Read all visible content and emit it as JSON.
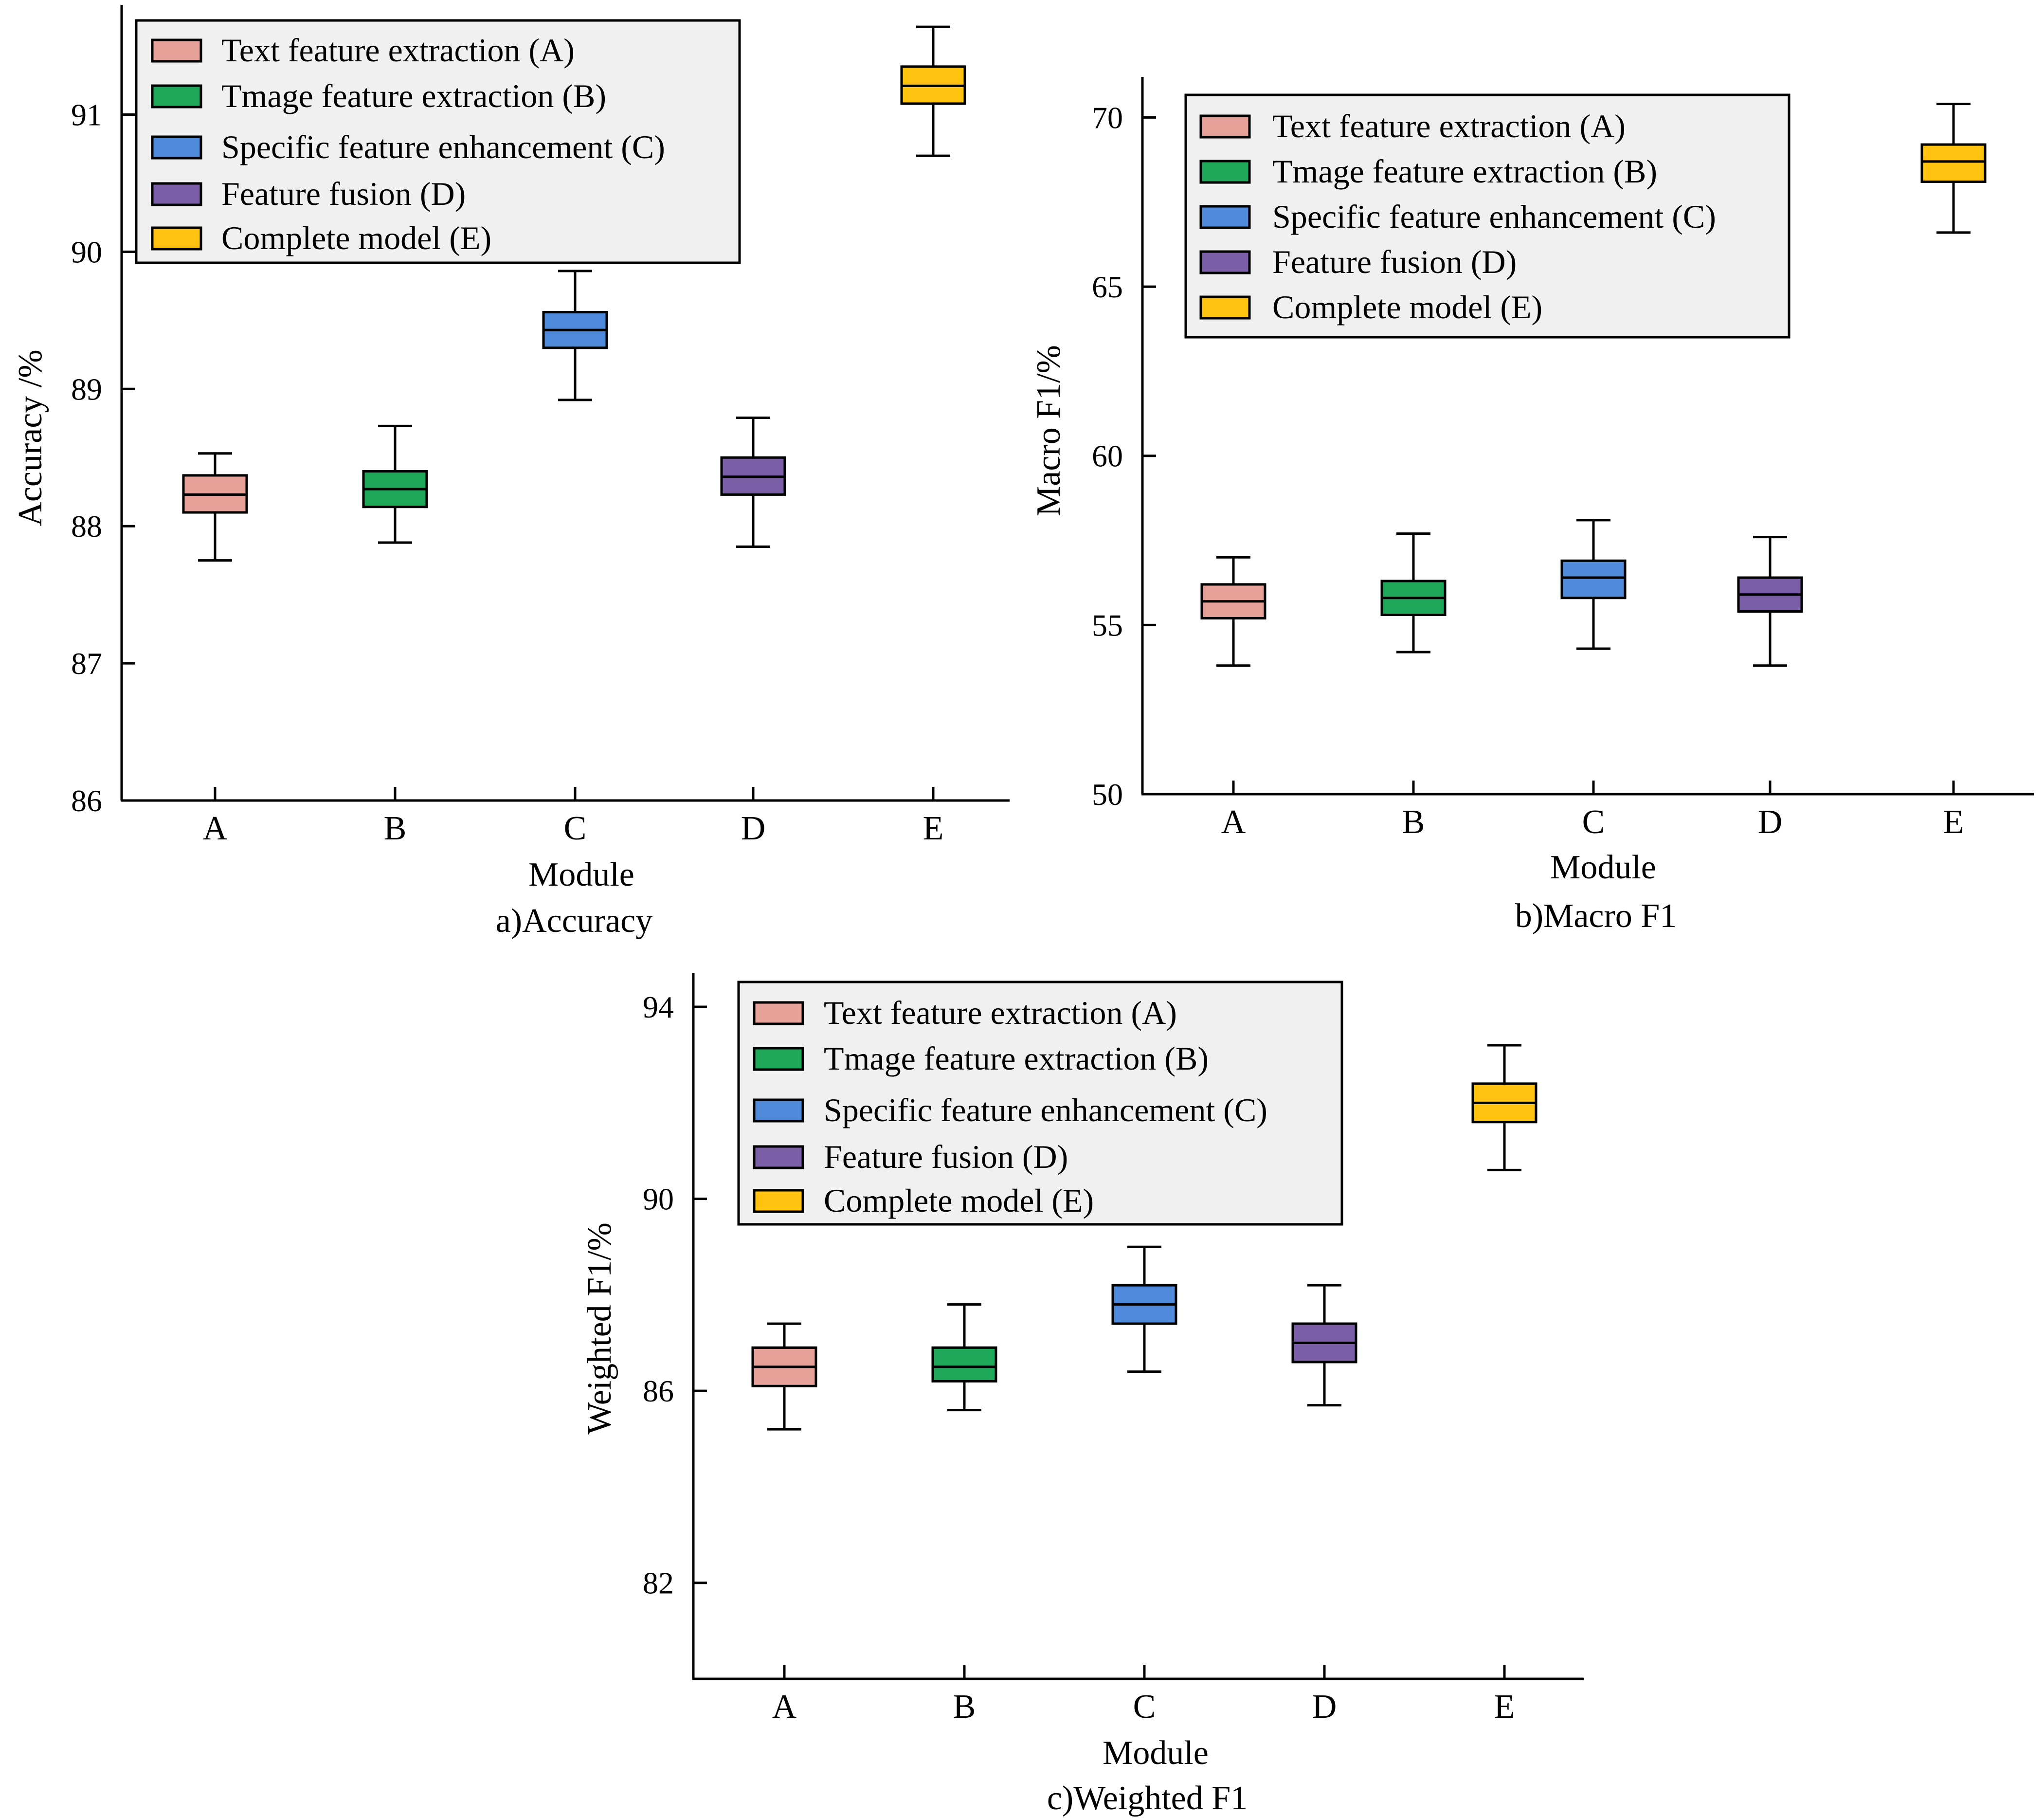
{
  "legend_entries": [
    {
      "key": "A",
      "label": "Text feature extraction (A)",
      "color": "#E6A199"
    },
    {
      "key": "B",
      "label": "Tmage feature extraction (B)",
      "color": "#1FA85A"
    },
    {
      "key": "C",
      "label": "Specific feature enhancement (C)",
      "color": "#4F8ADB"
    },
    {
      "key": "D",
      "label": "Feature fusion (D)",
      "color": "#7B5FA6"
    },
    {
      "key": "E",
      "label": "Complete model (E)",
      "color": "#FFC20E"
    }
  ],
  "chart_data": [
    {
      "type": "box",
      "caption": "a)Accuracy",
      "xlabel": "Module",
      "ylabel": "Accuracy /%",
      "categories": [
        "A",
        "B",
        "C",
        "D",
        "E"
      ],
      "ylim": [
        86,
        91.8
      ],
      "yticks": [
        86,
        87,
        88,
        89,
        90,
        91
      ],
      "boxes": [
        {
          "min": 87.75,
          "q1": 88.1,
          "median": 88.23,
          "q3": 88.37,
          "max": 88.53
        },
        {
          "min": 87.88,
          "q1": 88.14,
          "median": 88.27,
          "q3": 88.4,
          "max": 88.73
        },
        {
          "min": 88.92,
          "q1": 89.3,
          "median": 89.43,
          "q3": 89.56,
          "max": 89.86
        },
        {
          "min": 87.85,
          "q1": 88.23,
          "median": 88.36,
          "q3": 88.5,
          "max": 88.79
        },
        {
          "min": 90.7,
          "q1": 91.08,
          "median": 91.21,
          "q3": 91.35,
          "max": 91.64
        }
      ],
      "legend_position": "top-left"
    },
    {
      "type": "box",
      "caption": "b)Macro F1",
      "xlabel": "Module",
      "ylabel": "Macro F1/%",
      "categories": [
        "A",
        "B",
        "C",
        "D",
        "E"
      ],
      "ylim": [
        50,
        71.2
      ],
      "yticks": [
        50,
        55,
        60,
        65,
        70
      ],
      "boxes": [
        {
          "min": 53.8,
          "q1": 55.2,
          "median": 55.7,
          "q3": 56.2,
          "max": 57.0
        },
        {
          "min": 54.2,
          "q1": 55.3,
          "median": 55.8,
          "q3": 56.3,
          "max": 57.7
        },
        {
          "min": 54.3,
          "q1": 55.8,
          "median": 56.4,
          "q3": 56.9,
          "max": 58.1
        },
        {
          "min": 53.8,
          "q1": 55.4,
          "median": 55.9,
          "q3": 56.4,
          "max": 57.6
        },
        {
          "min": 66.6,
          "q1": 68.1,
          "median": 68.7,
          "q3": 69.2,
          "max": 70.4
        }
      ],
      "legend_position": "top-left"
    },
    {
      "type": "box",
      "caption": "c)Weighted F1",
      "xlabel": "Module",
      "ylabel": "Weighted F1/%",
      "categories": [
        "A",
        "B",
        "C",
        "D",
        "E"
      ],
      "ylim": [
        80,
        94.7
      ],
      "yticks": [
        82,
        86,
        90,
        94
      ],
      "boxes": [
        {
          "min": 85.2,
          "q1": 86.1,
          "median": 86.5,
          "q3": 86.9,
          "max": 87.4
        },
        {
          "min": 85.6,
          "q1": 86.2,
          "median": 86.5,
          "q3": 86.9,
          "max": 87.8
        },
        {
          "min": 86.4,
          "q1": 87.4,
          "median": 87.8,
          "q3": 88.2,
          "max": 89.0
        },
        {
          "min": 85.7,
          "q1": 86.6,
          "median": 87.0,
          "q3": 87.4,
          "max": 88.2
        },
        {
          "min": 90.6,
          "q1": 91.6,
          "median": 92.0,
          "q3": 92.4,
          "max": 93.2
        }
      ],
      "legend_position": "top-left"
    }
  ]
}
